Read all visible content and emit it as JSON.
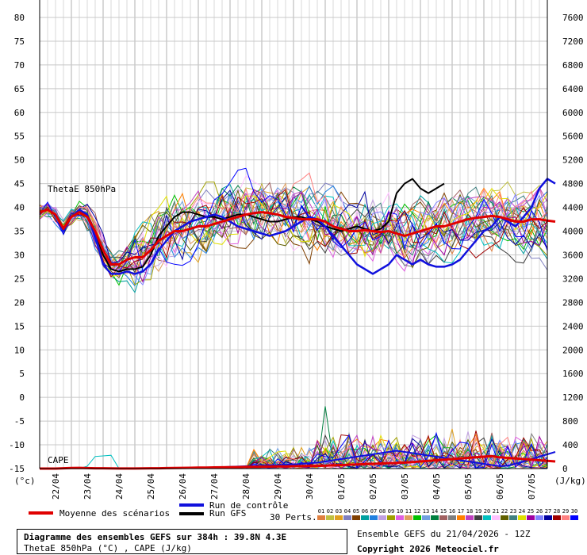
{
  "chart_data": {
    "type": "line",
    "left_axis": {
      "unit": "(°c)",
      "ticks": [
        80,
        75,
        70,
        65,
        60,
        55,
        50,
        45,
        40,
        35,
        30,
        25,
        20,
        15,
        10,
        5,
        0,
        -5,
        -10,
        -15
      ],
      "range": [
        -15,
        80
      ]
    },
    "right_axis": {
      "unit": "(J/kg)",
      "ticks": [
        7600,
        7200,
        6800,
        6400,
        6000,
        5600,
        5200,
        4800,
        4400,
        4000,
        3600,
        3200,
        2800,
        2400,
        2000,
        1600,
        1200,
        800,
        400,
        0
      ],
      "range": [
        0,
        7600
      ]
    },
    "x_labels": [
      "22/04",
      "23/04",
      "24/04",
      "25/04",
      "26/04",
      "27/04",
      "28/04",
      "29/04",
      "30/04",
      "01/05",
      "02/05",
      "03/05",
      "04/05",
      "05/05",
      "06/05",
      "07/05"
    ],
    "panel_labels": {
      "theta": "ThetaE 850hPa",
      "cape": "CAPE"
    },
    "theta_mean": [
      39,
      39.5,
      38.5,
      35.5,
      38,
      39,
      38,
      35,
      31,
      28,
      28,
      29,
      29.5,
      29.5,
      31,
      33,
      34,
      35,
      35,
      35.5,
      36,
      36,
      36.5,
      37,
      37.5,
      38,
      38.5,
      38.8,
      39,
      38.8,
      38.5,
      38,
      37.8,
      37.5,
      37.5,
      37.5,
      37,
      36,
      35.5,
      35,
      35,
      35.2,
      35,
      34.8,
      35,
      34.5,
      34,
      34.5,
      35,
      35.5,
      36,
      36,
      36.5,
      37,
      37.5,
      37.8,
      38,
      38.2,
      38,
      37.5,
      37,
      37,
      37.5,
      37.5,
      37.2,
      37
    ],
    "theta_control": [
      39,
      39.5,
      38.5,
      35,
      38,
      39.5,
      38.5,
      34,
      28,
      26,
      26,
      26.5,
      26,
      26.5,
      28,
      31,
      33,
      35,
      36,
      37,
      37.5,
      38,
      38.5,
      38,
      37,
      36,
      35.5,
      35,
      34.5,
      34,
      34.5,
      35,
      36,
      37,
      38,
      37.5,
      36,
      34,
      32,
      30,
      28,
      27,
      26,
      27,
      28,
      30,
      29,
      28,
      29,
      28,
      27.5,
      27.5,
      28,
      29,
      31,
      33,
      35,
      36,
      38,
      37,
      36,
      38,
      40,
      44,
      46,
      45
    ],
    "theta_gfs": [
      39,
      39.5,
      38.5,
      35,
      38,
      39.5,
      38.5,
      35,
      30,
      27,
      26.5,
      27,
      27,
      27.5,
      30,
      34,
      36,
      38,
      39,
      39,
      38.5,
      38,
      38,
      37.5,
      38,
      38.5,
      38.5,
      38,
      37.5,
      37,
      37,
      37.5,
      38,
      38,
      37.5,
      37,
      36,
      35.5,
      35,
      35.5,
      36,
      35.5,
      35,
      35.5,
      37,
      43,
      45,
      46,
      44,
      43,
      44,
      45
    ],
    "cape_mean": [
      0,
      0,
      0,
      5,
      10,
      12,
      8,
      5,
      5,
      3,
      2,
      2,
      2,
      3,
      5,
      6,
      8,
      10,
      12,
      14,
      16,
      18,
      20,
      22,
      24,
      26,
      28,
      30,
      32,
      34,
      36,
      38,
      40,
      42,
      44,
      46,
      50,
      55,
      60,
      65,
      70,
      75,
      80,
      85,
      90,
      95,
      100,
      110,
      120,
      130,
      140,
      150,
      160,
      170,
      180,
      190,
      200,
      210,
      190,
      180,
      170,
      160,
      150,
      140,
      130,
      120
    ],
    "cape_control": [
      0,
      0,
      0,
      5,
      10,
      12,
      8,
      5,
      5,
      3,
      2,
      2,
      2,
      3,
      5,
      6,
      8,
      10,
      12,
      14,
      16,
      18,
      20,
      25,
      30,
      35,
      40,
      45,
      50,
      55,
      60,
      65,
      70,
      80,
      90,
      100,
      120,
      140,
      160,
      180,
      200,
      220,
      240,
      260,
      280,
      300,
      280,
      260,
      240,
      220,
      200,
      180,
      160,
      140,
      120,
      100,
      80,
      60,
      40,
      50,
      80,
      120,
      160,
      200,
      240,
      280
    ],
    "cape_gfs": [
      0,
      0,
      0,
      5,
      10,
      12,
      8,
      5,
      5,
      3,
      2,
      2,
      2,
      3,
      5,
      6,
      8,
      10,
      12,
      14,
      16,
      18,
      20,
      22,
      24,
      26,
      28,
      30,
      32,
      34,
      36,
      38,
      40,
      42,
      44,
      46,
      50,
      55,
      60,
      65,
      70,
      75,
      80,
      85,
      90,
      95,
      100,
      110,
      120,
      130,
      140,
      150,
      160,
      170,
      180,
      190,
      200,
      210,
      190,
      180,
      170,
      160,
      150,
      140,
      130,
      120
    ],
    "legend": {
      "mean": "Moyenne des scénarios",
      "control": "Run de contrôle",
      "gfs": "Run GFS",
      "perts": "30 Perts."
    },
    "perts_numbers": [
      "01",
      "02",
      "03",
      "04",
      "05",
      "06",
      "07",
      "08",
      "09",
      "10",
      "11",
      "12",
      "13",
      "14",
      "15",
      "16",
      "17",
      "18",
      "19",
      "20",
      "21",
      "22",
      "23",
      "24",
      "25",
      "26",
      "27",
      "28",
      "29",
      "30"
    ],
    "colors": {
      "mean": "#e00000",
      "control": "#1010dd",
      "gfs": "#000000",
      "perts": [
        "#e07f3f",
        "#c0c040",
        "#e0a020",
        "#7f7fc0",
        "#7f3f00",
        "#00a0a0",
        "#2080e0",
        "#c0a0e0",
        "#a0a000",
        "#e060e0",
        "#e0a060",
        "#00c000",
        "#70a0e0",
        "#008040",
        "#a06060",
        "#7f7f7f",
        "#ff8000",
        "#c040c0",
        "#404040",
        "#00c0c0",
        "#ffc0ff",
        "#606000",
        "#408080",
        "#e0e000",
        "#a000a0",
        "#8080ff",
        "#0000a0",
        "#a00000",
        "#ff8080",
        "#0000ff"
      ]
    }
  },
  "info": {
    "title": "Diagramme des ensembles GEFS sur 384h : 39.8N 4.3E",
    "subtitle": "ThetaE 850hPa (°C) , CAPE (J/kg)",
    "run_label": "Ensemble GEFS du 21/04/2026 - 12Z",
    "copyright": "Copyright 2026 Meteociel.fr"
  }
}
